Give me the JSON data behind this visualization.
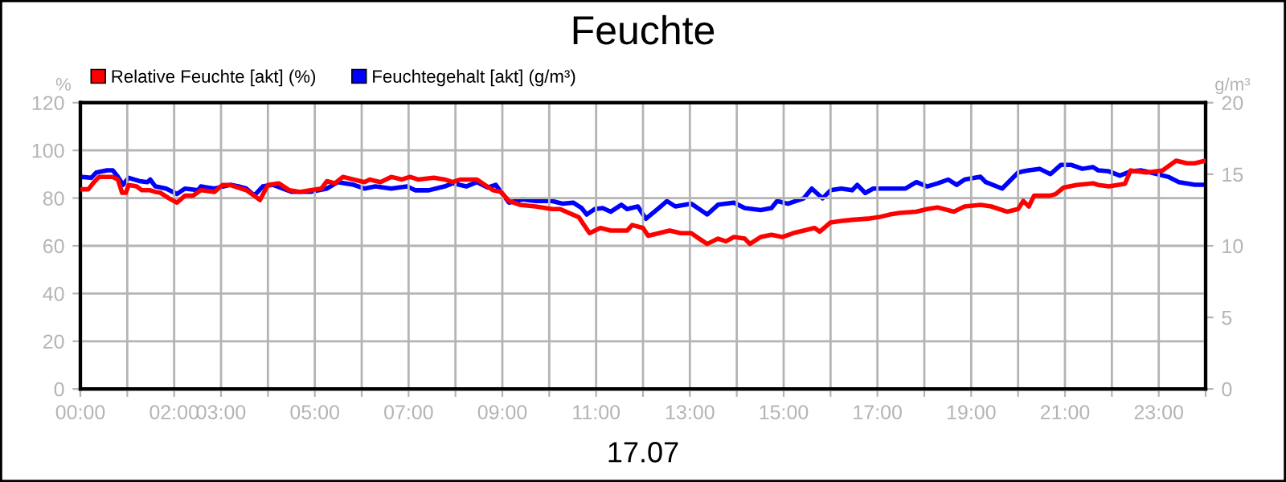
{
  "chart_data": {
    "type": "line",
    "title": "Feuchte",
    "xlabel": "17.07",
    "ylabel": "%",
    "y2label": "g/m³",
    "xlim": [
      0,
      24
    ],
    "xticks": [
      {
        "value": 0,
        "label": "00:00"
      },
      {
        "value": 1,
        "label": null
      },
      {
        "value": 2,
        "label": "02:00"
      },
      {
        "value": 3,
        "label": "03:00"
      },
      {
        "value": 4,
        "label": null
      },
      {
        "value": 5,
        "label": "05:00"
      },
      {
        "value": 6,
        "label": null
      },
      {
        "value": 7,
        "label": "07:00"
      },
      {
        "value": 8,
        "label": null
      },
      {
        "value": 9,
        "label": "09:00"
      },
      {
        "value": 10,
        "label": null
      },
      {
        "value": 11,
        "label": "11:00"
      },
      {
        "value": 12,
        "label": null
      },
      {
        "value": 13,
        "label": "13:00"
      },
      {
        "value": 14,
        "label": null
      },
      {
        "value": 15,
        "label": "15:00"
      },
      {
        "value": 16,
        "label": null
      },
      {
        "value": 17,
        "label": "17:00"
      },
      {
        "value": 18,
        "label": null
      },
      {
        "value": 19,
        "label": "19:00"
      },
      {
        "value": 20,
        "label": null
      },
      {
        "value": 21,
        "label": "21:00"
      },
      {
        "value": 22,
        "label": null
      },
      {
        "value": 23,
        "label": "23:00"
      },
      {
        "value": 24,
        "label": null
      }
    ],
    "ylim": [
      0,
      120
    ],
    "yticks": [
      0,
      20,
      40,
      60,
      80,
      100,
      120
    ],
    "y2lim": [
      0,
      20
    ],
    "y2ticks": [
      0,
      5,
      10,
      15,
      20
    ],
    "grid": true,
    "legend": "top left",
    "marker": "none",
    "line_style": "solid",
    "series": [
      {
        "name": "Relative Feuchte [akt] (%)",
        "color": "#ff0000",
        "x": [
          0,
          0.17,
          0.29,
          0.4,
          0.69,
          0.8,
          0.89,
          0.97,
          1.03,
          1.2,
          1.31,
          1.49,
          1.6,
          1.71,
          1.89,
          2.06,
          2.23,
          2.4,
          2.57,
          2.86,
          3.03,
          3.2,
          3.54,
          3.71,
          3.83,
          4.0,
          4.23,
          4.46,
          4.68,
          4.91,
          5.14,
          5.26,
          5.43,
          5.6,
          5.83,
          6.06,
          6.17,
          6.4,
          6.63,
          6.86,
          7.03,
          7.2,
          7.54,
          7.77,
          7.94,
          8.11,
          8.46,
          8.63,
          8.8,
          8.97,
          9.14,
          9.37,
          9.71,
          10.06,
          10.23,
          10.63,
          10.86,
          11.09,
          11.31,
          11.66,
          11.77,
          12.0,
          12.11,
          12.34,
          12.57,
          12.8,
          13.03,
          13.2,
          13.37,
          13.6,
          13.77,
          13.94,
          14.17,
          14.28,
          14.51,
          14.74,
          14.97,
          15.2,
          15.43,
          15.66,
          15.77,
          16.0,
          16.23,
          16.46,
          16.8,
          17.03,
          17.26,
          17.48,
          17.83,
          18.06,
          18.28,
          18.63,
          18.86,
          19.2,
          19.43,
          19.77,
          20.0,
          20.11,
          20.23,
          20.34,
          20.68,
          20.8,
          20.97,
          21.25,
          21.6,
          21.71,
          21.94,
          22.28,
          22.4,
          22.74,
          23.08,
          23.37,
          23.6,
          23.77,
          24.0
        ],
        "values": [
          83.7,
          83.7,
          86.7,
          88.9,
          88.9,
          87.8,
          82.2,
          82.2,
          85.5,
          84.9,
          83.3,
          83.3,
          82.6,
          82.2,
          79.9,
          78.1,
          81.0,
          81.0,
          83.3,
          82.6,
          85.5,
          85.5,
          83.3,
          81.0,
          79.2,
          85.5,
          86.2,
          83.3,
          82.6,
          83.3,
          84.0,
          87.1,
          86.2,
          88.9,
          87.8,
          86.7,
          87.8,
          86.7,
          88.9,
          87.8,
          88.9,
          87.8,
          88.5,
          87.8,
          86.7,
          87.8,
          87.8,
          85.5,
          83.3,
          82.6,
          78.8,
          77.2,
          76.5,
          75.4,
          75.4,
          72.0,
          65.3,
          67.5,
          66.4,
          66.4,
          68.7,
          67.5,
          64.2,
          65.3,
          66.4,
          65.3,
          65.3,
          63.0,
          60.8,
          63.0,
          61.9,
          63.7,
          63.0,
          60.8,
          63.7,
          64.6,
          63.7,
          65.3,
          66.4,
          67.5,
          65.9,
          69.8,
          70.4,
          70.9,
          71.4,
          72.0,
          73.1,
          73.8,
          74.3,
          75.4,
          76.1,
          74.3,
          76.5,
          77.2,
          76.5,
          74.3,
          75.4,
          78.8,
          76.5,
          81.0,
          81.0,
          81.7,
          84.4,
          85.5,
          86.2,
          85.5,
          84.9,
          86.0,
          91.6,
          90.7,
          91.6,
          95.7,
          94.6,
          94.6,
          95.7
        ]
      },
      {
        "name": "Feuchtegehalt [akt] (g/m³)",
        "color": "#0000ff",
        "axis": "y2",
        "x": [
          0,
          0.23,
          0.34,
          0.57,
          0.69,
          0.8,
          0.91,
          1.03,
          1.26,
          1.43,
          1.49,
          1.6,
          1.83,
          2.06,
          2.23,
          2.51,
          2.57,
          2.86,
          3.2,
          3.37,
          3.54,
          3.71,
          3.89,
          4.11,
          4.51,
          4.91,
          5.26,
          5.49,
          5.83,
          6.06,
          6.29,
          6.63,
          6.97,
          7.14,
          7.43,
          7.77,
          7.94,
          8.23,
          8.46,
          8.69,
          8.86,
          8.97,
          9.14,
          9.43,
          9.71,
          10.06,
          10.29,
          10.51,
          10.69,
          10.8,
          10.97,
          11.14,
          11.31,
          11.54,
          11.66,
          11.89,
          12.06,
          12.34,
          12.51,
          12.69,
          13.03,
          13.2,
          13.37,
          13.6,
          13.94,
          14.17,
          14.51,
          14.74,
          14.86,
          15.09,
          15.43,
          15.6,
          15.83,
          16.0,
          16.23,
          16.46,
          16.57,
          16.74,
          16.91,
          17.26,
          17.6,
          17.83,
          18.06,
          18.29,
          18.51,
          18.69,
          18.86,
          19.2,
          19.31,
          19.66,
          20.0,
          20.11,
          20.23,
          20.46,
          20.69,
          20.91,
          21.14,
          21.37,
          21.6,
          21.71,
          21.94,
          22.17,
          22.4,
          22.63,
          22.97,
          23.2,
          23.43,
          23.77,
          24.0
        ],
        "values": [
          14.82,
          14.75,
          15.12,
          15.27,
          15.27,
          14.82,
          14.26,
          14.75,
          14.52,
          14.45,
          14.63,
          14.15,
          14.0,
          13.62,
          14.0,
          13.88,
          14.15,
          14.0,
          14.26,
          14.15,
          14.0,
          13.51,
          14.15,
          14.26,
          13.77,
          13.77,
          14.0,
          14.45,
          14.26,
          14.0,
          14.15,
          14.0,
          14.15,
          13.88,
          13.88,
          14.15,
          14.37,
          14.15,
          14.45,
          14.07,
          14.26,
          13.77,
          13.02,
          13.24,
          13.13,
          13.13,
          12.94,
          13.02,
          12.64,
          12.19,
          12.57,
          12.64,
          12.38,
          12.87,
          12.57,
          12.75,
          11.89,
          12.64,
          13.13,
          12.75,
          12.94,
          12.57,
          12.19,
          12.87,
          13.02,
          12.64,
          12.5,
          12.64,
          13.13,
          12.94,
          13.32,
          14.0,
          13.32,
          13.88,
          14.0,
          13.88,
          14.26,
          13.69,
          14.0,
          14.0,
          14.0,
          14.45,
          14.15,
          14.37,
          14.63,
          14.26,
          14.63,
          14.82,
          14.45,
          14.0,
          15.12,
          15.2,
          15.27,
          15.38,
          15.01,
          15.65,
          15.65,
          15.38,
          15.5,
          15.27,
          15.2,
          14.9,
          15.2,
          15.27,
          15.01,
          14.82,
          14.45,
          14.26,
          14.26
        ]
      }
    ]
  }
}
